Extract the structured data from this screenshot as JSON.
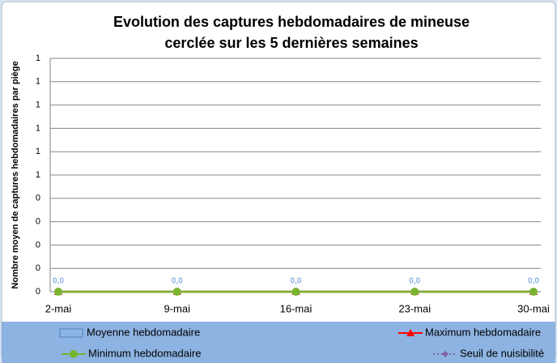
{
  "chart_data": {
    "type": "line",
    "title": [
      "Evolution des captures hebdomadaires de mineuse",
      "cerclée sur les 5 dernières semaines"
    ],
    "y_label": "Nombre moyen de captures hebdomadaires par piège",
    "categories": [
      "2-mai",
      "9-mai",
      "16-mai",
      "23-mai",
      "30-mai"
    ],
    "ylim": [
      0,
      1
    ],
    "yticks": [
      {
        "value": 0,
        "label": "0"
      },
      {
        "value": 0.1,
        "label": "0"
      },
      {
        "value": 0.2,
        "label": "0"
      },
      {
        "value": 0.3,
        "label": "0"
      },
      {
        "value": 0.4,
        "label": "0"
      },
      {
        "value": 0.5,
        "label": "1"
      },
      {
        "value": 0.6,
        "label": "1"
      },
      {
        "value": 0.7,
        "label": "1"
      },
      {
        "value": 0.8,
        "label": "1"
      },
      {
        "value": 0.9,
        "label": "1"
      },
      {
        "value": 1,
        "label": "1"
      }
    ],
    "grid": true,
    "series": [
      {
        "name": "Moyenne hebdomadaire",
        "kind": "bar",
        "color": "#8db3e2",
        "values": [
          0,
          0,
          0,
          0,
          0
        ],
        "value_labels": [
          "0,0",
          "0,0",
          "0,0",
          "0,0",
          "0,0"
        ]
      },
      {
        "name": "Maximum hebdomadaire",
        "kind": "line",
        "marker": "triangle",
        "color": "#ff0000",
        "values": [
          0,
          0,
          0,
          0,
          0
        ]
      },
      {
        "name": "Seuil de nuisibilité",
        "kind": "line",
        "marker": "diamond",
        "dash": true,
        "color": "#8064a2",
        "values": [
          0,
          0,
          0,
          0,
          0
        ]
      },
      {
        "name": "Minimum hebdomadaire",
        "kind": "line",
        "marker": "circle",
        "color": "#77b530",
        "values": [
          0,
          0,
          0,
          0,
          0
        ]
      }
    ]
  }
}
